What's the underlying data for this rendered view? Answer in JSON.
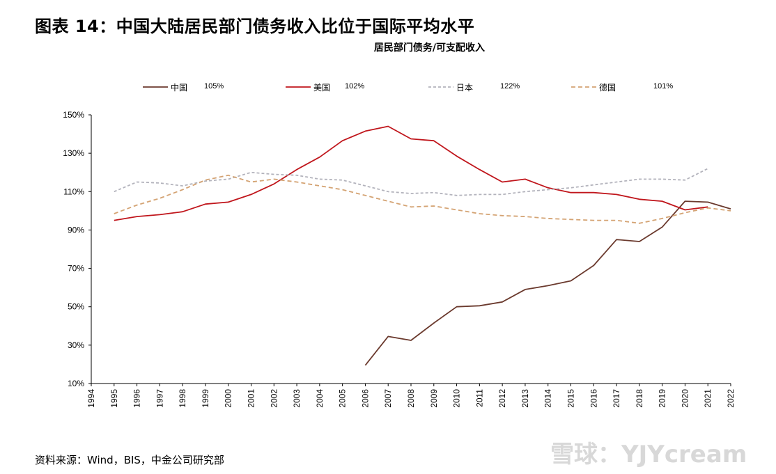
{
  "header": {
    "title": "图表 14：中国大陆居民部门债务收入比位于国际平均水平",
    "subtitle": "居民部门债务/可支配收入"
  },
  "source": "资料来源：Wind，BIS，中金公司研究部",
  "watermark": "雪球：YJYcream",
  "chart_data": {
    "type": "line",
    "title": "",
    "xlabel": "",
    "ylabel": "",
    "ylim": [
      10,
      150
    ],
    "yticks": [
      "10%",
      "30%",
      "50%",
      "70%",
      "90%",
      "110%",
      "130%",
      "150%"
    ],
    "x": [
      "1994",
      "1995",
      "1996",
      "1997",
      "1998",
      "1999",
      "2000",
      "2001",
      "2002",
      "2003",
      "2004",
      "2005",
      "2006",
      "2007",
      "2008",
      "2009",
      "2010",
      "2011",
      "2012",
      "2013",
      "2014",
      "2015",
      "2016",
      "2017",
      "2018",
      "2019",
      "2020",
      "2021",
      "2022"
    ],
    "grid": false,
    "legend_position": "top",
    "series": [
      {
        "name": "中国",
        "annotation": "105%",
        "color": "#6b3a2e",
        "dash": "solid",
        "values": [
          null,
          null,
          null,
          null,
          null,
          null,
          null,
          null,
          null,
          null,
          null,
          null,
          19.5,
          34.5,
          32.5,
          41.5,
          50,
          50.5,
          52.5,
          59,
          61,
          63.5,
          71.5,
          85,
          84,
          91.5,
          105,
          104.5,
          101
        ]
      },
      {
        "name": "美国",
        "annotation": "102%",
        "color": "#c0161c",
        "dash": "solid",
        "values": [
          null,
          95,
          97,
          98,
          99.5,
          103.5,
          104.5,
          108.5,
          114,
          121.5,
          128,
          136.5,
          141.5,
          144,
          137.5,
          136.5,
          128.5,
          121.5,
          115,
          116.5,
          112,
          109.5,
          109.5,
          108.5,
          106,
          105,
          100.5,
          102,
          null
        ]
      },
      {
        "name": "日本",
        "annotation": "122%",
        "color": "#b3b3bc",
        "dash": "4,3",
        "values": [
          null,
          110,
          115,
          114.5,
          113,
          115.5,
          116.5,
          120,
          119,
          118.5,
          116.5,
          116,
          113,
          110,
          109,
          109.5,
          108,
          108.5,
          108.5,
          110,
          111,
          112,
          113.5,
          115,
          116.5,
          116.5,
          116,
          122,
          null
        ]
      },
      {
        "name": "德国",
        "annotation": "101%",
        "color": "#d4a373",
        "dash": "6,4",
        "values": [
          null,
          98.5,
          103,
          106.5,
          111,
          116,
          118.5,
          115,
          116.5,
          115,
          113,
          111,
          108,
          105,
          102,
          102.5,
          100.5,
          98.5,
          97.5,
          97,
          96,
          95.5,
          95,
          95,
          93.5,
          96,
          99,
          101.5,
          100
        ]
      }
    ]
  }
}
